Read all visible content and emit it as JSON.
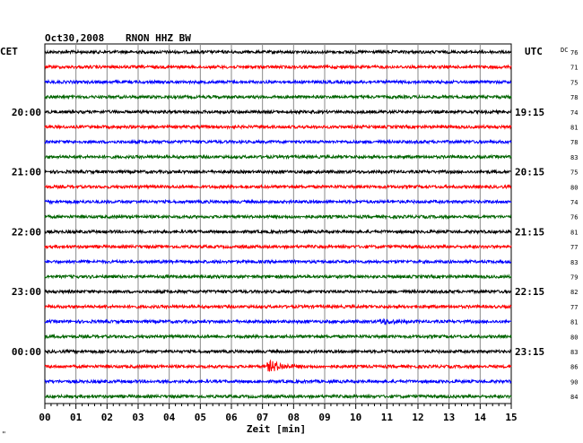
{
  "header": {
    "date": "Oct30,2008",
    "station": "RNON HHZ BW",
    "left_timezone": "CET",
    "right_timezone": "UTC",
    "dc_label": "DC",
    "corner_mark": "\"",
    "xaxis_label": "Zeit [min]"
  },
  "chart_data": {
    "type": "line",
    "title": "Oct30,2008   RNON HHZ BW",
    "xlabel": "Zeit [min]",
    "ylabel": "",
    "xlim": [
      0,
      15
    ],
    "x_ticks": [
      "00",
      "01",
      "02",
      "03",
      "04",
      "05",
      "06",
      "07",
      "08",
      "09",
      "10",
      "11",
      "12",
      "13",
      "14",
      "15"
    ],
    "grid": true,
    "trace_colors": [
      "#000000",
      "#ff0000",
      "#0000ff",
      "#006400"
    ],
    "left_hour_labels": [
      {
        "row": 4,
        "label": "20:00"
      },
      {
        "row": 8,
        "label": "21:00"
      },
      {
        "row": 12,
        "label": "22:00"
      },
      {
        "row": 16,
        "label": "23:00"
      },
      {
        "row": 20,
        "label": "00:00"
      }
    ],
    "right_hour_labels": [
      {
        "row": 4,
        "label": "19:15"
      },
      {
        "row": 8,
        "label": "20:15"
      },
      {
        "row": 12,
        "label": "21:15"
      },
      {
        "row": 16,
        "label": "22:15"
      },
      {
        "row": 20,
        "label": "23:15"
      }
    ],
    "dc_values": [
      76,
      71,
      75,
      78,
      74,
      81,
      78,
      83,
      75,
      80,
      74,
      76,
      81,
      77,
      83,
      79,
      82,
      77,
      81,
      80,
      83,
      86,
      90,
      84
    ],
    "events": [
      {
        "row": 18,
        "minute": 10.9,
        "amplitude": 2.2
      },
      {
        "row": 21,
        "minute": 7.3,
        "amplitude": 5.5
      }
    ]
  }
}
